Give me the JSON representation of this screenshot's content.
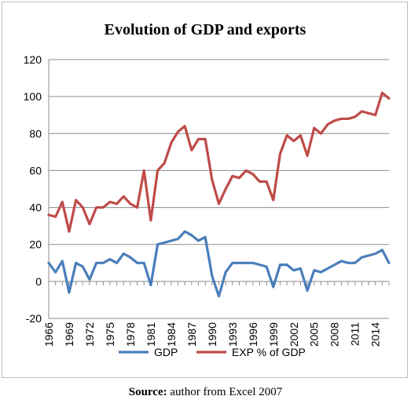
{
  "caption": {
    "label": "Source:",
    "text": " author from Excel 2007"
  },
  "chart_data": {
    "type": "line",
    "title": "Evolution of GDP and exports",
    "xlabel": "",
    "ylabel": "",
    "ylim": [
      -20,
      120
    ],
    "yticks": [
      -20,
      0,
      20,
      40,
      60,
      80,
      100,
      120
    ],
    "x_tick_labels": [
      "1966",
      "1969",
      "1972",
      "1975",
      "1978",
      "1981",
      "1984",
      "1987",
      "1990",
      "1993",
      "1996",
      "1999",
      "2002",
      "2005",
      "2008",
      "2011",
      "2014"
    ],
    "x": [
      1966,
      1967,
      1968,
      1969,
      1970,
      1971,
      1972,
      1973,
      1974,
      1975,
      1976,
      1977,
      1978,
      1979,
      1980,
      1981,
      1982,
      1983,
      1984,
      1985,
      1986,
      1987,
      1988,
      1989,
      1990,
      1991,
      1992,
      1993,
      1994,
      1995,
      1996,
      1997,
      1998,
      1999,
      2000,
      2001,
      2002,
      2003,
      2004,
      2005,
      2006,
      2007,
      2008,
      2009,
      2010,
      2011,
      2012,
      2013,
      2014,
      2015,
      2016
    ],
    "grid": true,
    "legend": "bottom",
    "series": [
      {
        "name": "GDP",
        "color": "#4a7ebb",
        "values": [
          10,
          5,
          11,
          -6,
          10,
          8,
          1,
          10,
          10,
          12,
          10,
          15,
          13,
          10,
          10,
          -2,
          20,
          21,
          22,
          23,
          27,
          25,
          22,
          24,
          3,
          -8,
          5,
          10,
          10,
          10,
          10,
          9,
          8,
          -3,
          9,
          9,
          6,
          7,
          -5,
          6,
          5,
          7,
          9,
          11,
          10,
          10,
          13,
          14,
          15,
          17,
          10
        ]
      },
      {
        "name": "EXP % of GDP",
        "color": "#be4b48",
        "values": [
          36,
          35,
          43,
          27,
          44,
          40,
          31,
          40,
          40,
          43,
          42,
          46,
          42,
          40,
          60,
          33,
          60,
          64,
          75,
          81,
          84,
          71,
          77,
          77,
          55,
          42,
          50,
          57,
          56,
          60,
          58,
          54,
          54,
          44,
          69,
          79,
          76,
          79,
          68,
          83,
          80,
          85,
          87,
          88,
          88,
          89,
          92,
          91,
          90,
          102,
          99
        ]
      }
    ]
  }
}
